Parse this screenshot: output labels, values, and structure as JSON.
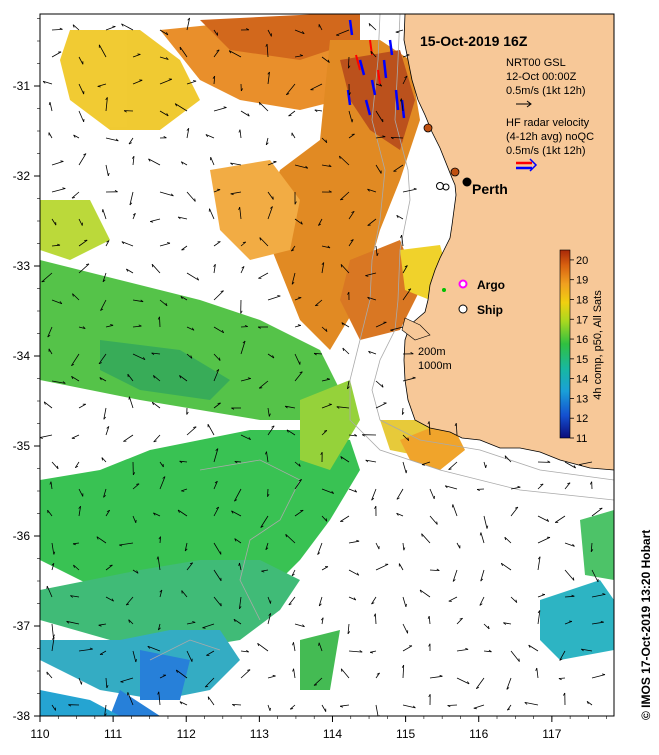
{
  "map": {
    "title": "15-Oct-2019 16Z",
    "credit": "© IMOS 17-Oct-2019 13:20 Hobart",
    "city": "Perth",
    "legend": {
      "current_model": "NRT00 GSL",
      "current_model_time": "12-Oct 00:00Z",
      "current_scale": "0.5m/s (1kt 12h)",
      "hf_title": "HF radar velocity",
      "hf_subtitle": "(4-12h avg) noQC",
      "hf_scale": "0.5m/s (1kt 12h)",
      "argo": "Argo",
      "ship": "Ship",
      "isobath_1": "200m",
      "isobath_2": "1000m"
    },
    "colorbar": {
      "label": "4h comp, p50, All Sats",
      "ticks": [
        "20",
        "19",
        "18",
        "17",
        "16",
        "15",
        "14",
        "13",
        "12",
        "11"
      ],
      "min": 11,
      "max": 20.5
    },
    "axes": {
      "x_ticks": [
        "110",
        "111",
        "112",
        "113",
        "114",
        "115",
        "116",
        "117"
      ],
      "y_ticks": [
        "-31",
        "-32",
        "-33",
        "-34",
        "-35",
        "-36",
        "-37",
        "-38"
      ],
      "lon_range": [
        110,
        117.85
      ],
      "lat_range": [
        -38,
        -30.2
      ]
    },
    "colors": {
      "land": "#f7c898",
      "arrow_model": "#000000",
      "arrow_radar_a": "#ff0000",
      "arrow_radar_b": "#0000ff",
      "argo_marker": "#ff00ff"
    }
  }
}
